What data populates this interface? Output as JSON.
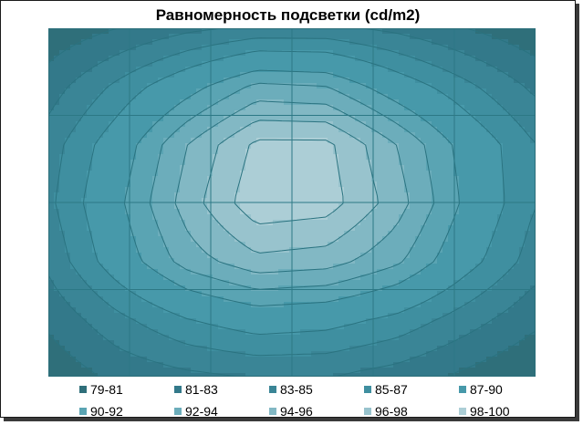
{
  "chart_data": {
    "type": "heatmap",
    "title": "Равномерность подсветки (cd/m2)",
    "legend_position": "bottom",
    "grid": true,
    "bands": [
      {
        "label": "79-81",
        "color": "#2f6f7a"
      },
      {
        "label": "81-83",
        "color": "#33798a"
      },
      {
        "label": "83-85",
        "color": "#3a8596"
      },
      {
        "label": "85-87",
        "color": "#3f8fa0"
      },
      {
        "label": "87-90",
        "color": "#4799aa"
      },
      {
        "label": "90-92",
        "color": "#5aa4b3"
      },
      {
        "label": "92-94",
        "color": "#6cadbb"
      },
      {
        "label": "94-96",
        "color": "#82b8c4"
      },
      {
        "label": "96-98",
        "color": "#98c3cd"
      },
      {
        "label": "98-100",
        "color": "#acced6"
      }
    ],
    "levels": [
      81,
      83,
      85,
      87,
      90,
      92,
      94,
      96,
      98
    ],
    "grid_values": [
      [
        79.5,
        81.0,
        82.5,
        83.5,
        83.5,
        82.5,
        81.0,
        79.5
      ],
      [
        82.0,
        85.5,
        89.0,
        92.5,
        92.0,
        88.5,
        85.5,
        82.5
      ],
      [
        84.0,
        88.5,
        94.0,
        98.5,
        98.5,
        94.0,
        89.0,
        85.0
      ],
      [
        84.5,
        89.5,
        95.0,
        99.5,
        99.0,
        95.0,
        89.5,
        85.0
      ],
      [
        83.5,
        88.5,
        93.0,
        95.5,
        95.0,
        92.5,
        88.0,
        84.0
      ],
      [
        81.5,
        84.5,
        87.0,
        88.5,
        88.0,
        86.5,
        84.0,
        81.5
      ],
      [
        79.5,
        81.5,
        82.5,
        83.0,
        83.0,
        82.0,
        80.5,
        79.0
      ]
    ]
  }
}
